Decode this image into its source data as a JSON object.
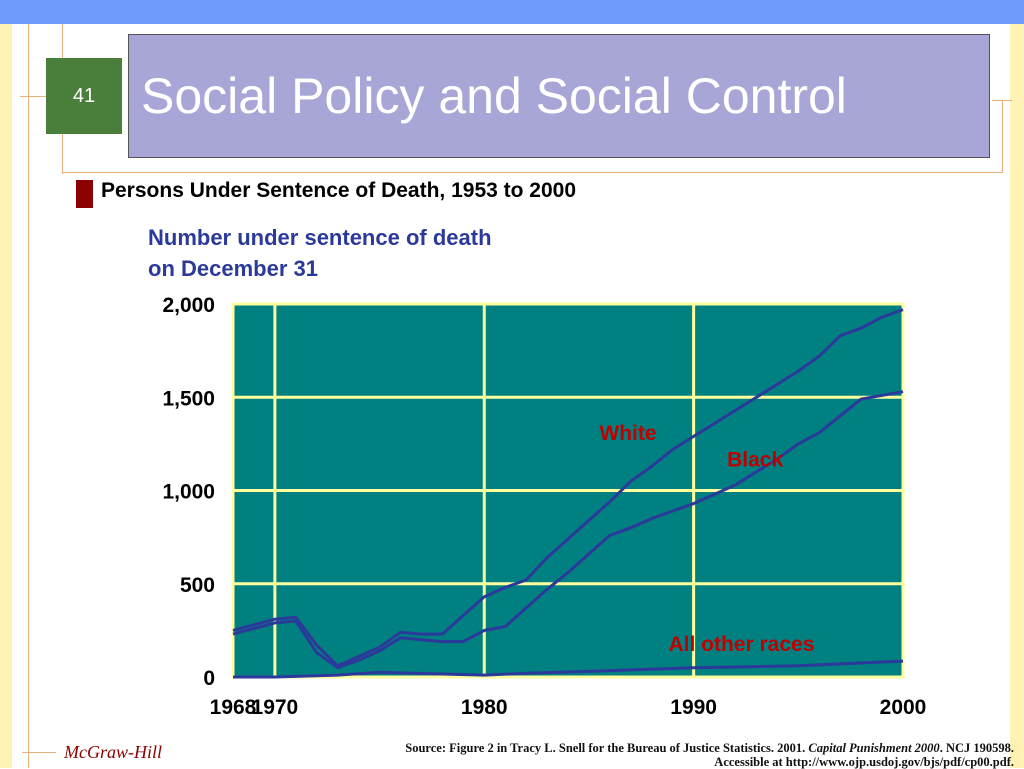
{
  "slide": {
    "number": "41",
    "title": "Social Policy and Social Control",
    "subtitle": "Persons Under Sentence of Death, 1953 to 2000",
    "ylabel_line1": "Number under sentence of death",
    "ylabel_line2": "on December 31",
    "brand": "McGraw-Hill",
    "source_part1": "Source: Figure 2 in Tracy L. Snell for the Bureau of Justice Statistics. 2001. ",
    "source_italic": "Capital Punishment 2000",
    "source_part2": ". NCJ 190598. Accessible at http://www.ojp.usdoj.gov/bjs/pdf/cp00.pdf."
  },
  "colors": {
    "plot_bg": "#008080",
    "grid": "#ffffa0",
    "line": "#2b3a9a",
    "label_red": "#c00000",
    "axis_text": "#000000"
  },
  "chart_data": {
    "type": "line",
    "title": "Persons Under Sentence of Death, 1953 to 2000",
    "ylabel": "Number under sentence of death on December 31",
    "xlabel": "",
    "xlim": [
      1968,
      2000
    ],
    "ylim": [
      0,
      2000
    ],
    "x_ticks": [
      "1968",
      "1970",
      "1980",
      "1990",
      "2000"
    ],
    "y_ticks": [
      "0",
      "500",
      "1,000",
      "1,500",
      "2,000"
    ],
    "grid": true,
    "series": [
      {
        "name": "White",
        "x": [
          1968,
          1969,
          1970,
          1971,
          1972,
          1973,
          1974,
          1975,
          1976,
          1977,
          1978,
          1979,
          1980,
          1981,
          1982,
          1983,
          1984,
          1985,
          1986,
          1987,
          1988,
          1989,
          1990,
          1991,
          1992,
          1993,
          1994,
          1995,
          1996,
          1997,
          1998,
          1999,
          2000
        ],
        "y": [
          250,
          280,
          310,
          320,
          170,
          60,
          110,
          160,
          240,
          230,
          230,
          330,
          430,
          480,
          520,
          640,
          740,
          840,
          940,
          1050,
          1130,
          1220,
          1290,
          1360,
          1430,
          1500,
          1570,
          1640,
          1720,
          1830,
          1870,
          1930,
          1970
        ]
      },
      {
        "name": "Black",
        "x": [
          1968,
          1969,
          1970,
          1971,
          1972,
          1973,
          1974,
          1975,
          1976,
          1977,
          1978,
          1979,
          1980,
          1981,
          1982,
          1983,
          1984,
          1985,
          1986,
          1987,
          1988,
          1989,
          1990,
          1991,
          1992,
          1993,
          1994,
          1995,
          1996,
          1997,
          1998,
          1999,
          2000
        ],
        "y": [
          230,
          260,
          290,
          300,
          130,
          50,
          90,
          140,
          210,
          200,
          190,
          190,
          250,
          270,
          370,
          470,
          560,
          660,
          760,
          800,
          850,
          890,
          930,
          980,
          1030,
          1100,
          1170,
          1250,
          1310,
          1400,
          1490,
          1510,
          1530
        ]
      },
      {
        "name": "All other races",
        "x": [
          1968,
          1970,
          1973,
          1975,
          1980,
          1982,
          1985,
          1990,
          1995,
          2000
        ],
        "y": [
          0,
          0,
          10,
          25,
          10,
          20,
          30,
          50,
          60,
          85
        ]
      }
    ]
  }
}
